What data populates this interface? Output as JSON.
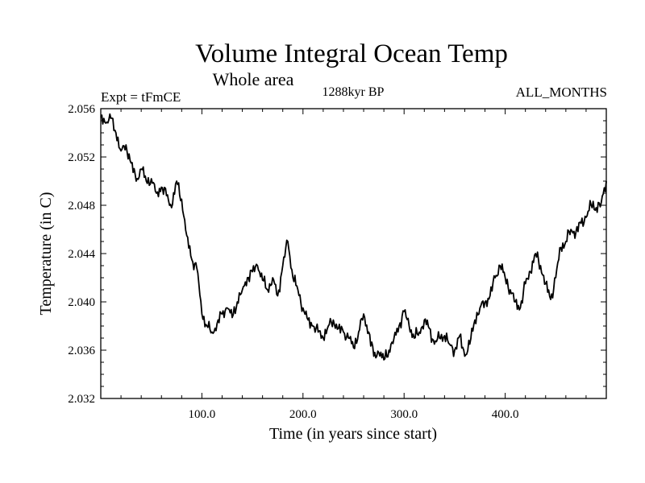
{
  "chart_data": {
    "type": "line",
    "title": "Volume Integral Ocean Temp",
    "subtitle": "Whole area",
    "left_note": "Expt = tFmCE",
    "center_note": "1288kyr BP",
    "right_note": "ALL_MONTHS",
    "xlabel": "Time (in years since start)",
    "ylabel": "Temperature (in C)",
    "xlim": [
      0,
      500
    ],
    "ylim": [
      2.032,
      2.056
    ],
    "xticks": [
      100,
      200,
      300,
      400
    ],
    "xtick_labels": [
      "100.0",
      "200.0",
      "300.0",
      "400.0"
    ],
    "yticks": [
      2.032,
      2.036,
      2.04,
      2.044,
      2.048,
      2.052,
      2.056
    ],
    "ytick_labels": [
      "2.032",
      "2.036",
      "2.040",
      "2.044",
      "2.048",
      "2.052",
      "2.056"
    ],
    "grid": false,
    "series": [
      {
        "name": "Temperature",
        "x": [
          0,
          5,
          10,
          15,
          20,
          25,
          30,
          35,
          40,
          45,
          50,
          55,
          60,
          65,
          70,
          75,
          80,
          85,
          90,
          95,
          100,
          105,
          110,
          115,
          120,
          125,
          130,
          135,
          140,
          145,
          150,
          155,
          160,
          165,
          170,
          175,
          180,
          185,
          190,
          195,
          200,
          205,
          210,
          215,
          220,
          225,
          230,
          235,
          240,
          245,
          250,
          255,
          260,
          265,
          270,
          275,
          280,
          285,
          290,
          295,
          300,
          305,
          310,
          315,
          320,
          325,
          330,
          335,
          340,
          345,
          350,
          355,
          360,
          365,
          370,
          375,
          380,
          385,
          390,
          395,
          400,
          405,
          410,
          415,
          420,
          425,
          430,
          435,
          440,
          445,
          450,
          455,
          460,
          465,
          470,
          475,
          480,
          485,
          490,
          495,
          500
        ],
        "values": [
          2.0553,
          2.0548,
          2.0552,
          2.054,
          2.0525,
          2.053,
          2.0515,
          2.05,
          2.051,
          2.05,
          2.0502,
          2.049,
          2.0495,
          2.0488,
          2.0478,
          2.05,
          2.0485,
          2.0455,
          2.0435,
          2.0428,
          2.039,
          2.038,
          2.0375,
          2.0382,
          2.039,
          2.0395,
          2.0387,
          2.04,
          2.041,
          2.042,
          2.0425,
          2.043,
          2.0418,
          2.041,
          2.042,
          2.0405,
          2.043,
          2.045,
          2.042,
          2.041,
          2.0395,
          2.0385,
          2.038,
          2.0375,
          2.037,
          2.038,
          2.0385,
          2.0378,
          2.0375,
          2.037,
          2.0362,
          2.0375,
          2.039,
          2.0375,
          2.0355,
          2.0358,
          2.0352,
          2.036,
          2.037,
          2.038,
          2.0392,
          2.038,
          2.037,
          2.0375,
          2.0385,
          2.0378,
          2.0365,
          2.037,
          2.0372,
          2.0365,
          2.036,
          2.0372,
          2.0355,
          2.0365,
          2.0385,
          2.0395,
          2.04,
          2.0405,
          2.042,
          2.043,
          2.042,
          2.041,
          2.04,
          2.0395,
          2.0415,
          2.0425,
          2.044,
          2.043,
          2.0415,
          2.0402,
          2.042,
          2.0445,
          2.045,
          2.046,
          2.0458,
          2.0465,
          2.047,
          2.048,
          2.0478,
          2.0482,
          2.05
        ]
      }
    ]
  }
}
